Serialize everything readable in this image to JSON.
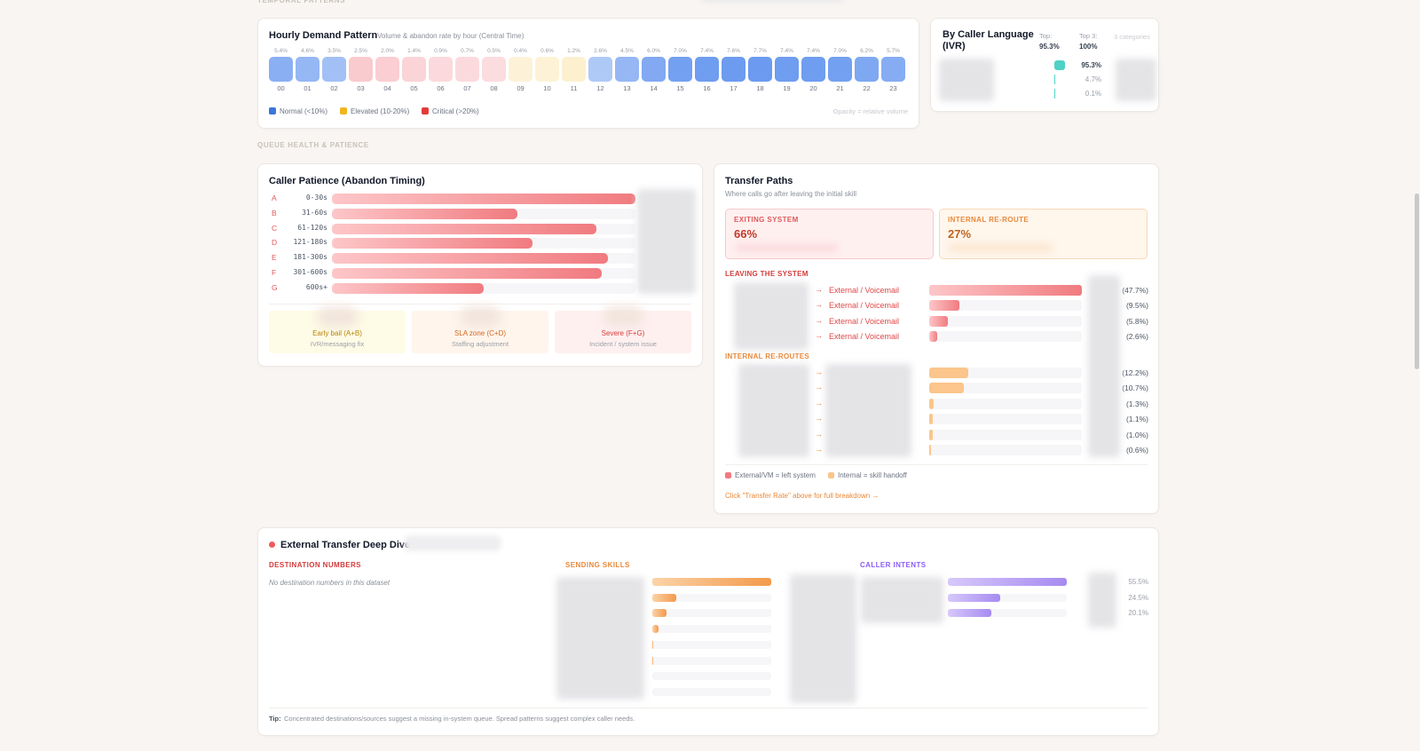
{
  "sections": {
    "temporal": "TEMPORAL PATTERNS",
    "queue": "QUEUE HEALTH & PATIENCE"
  },
  "hourly": {
    "title": "Hourly Demand Pattern",
    "subtitle": "Volume & abandon rate by hour (Central Time)",
    "hours": [
      "00",
      "01",
      "02",
      "03",
      "04",
      "05",
      "06",
      "07",
      "08",
      "09",
      "10",
      "11",
      "12",
      "13",
      "14",
      "15",
      "16",
      "17",
      "18",
      "19",
      "20",
      "21",
      "22",
      "23"
    ],
    "values": [
      5.4,
      4.6,
      3.5,
      2.5,
      2.0,
      1.4,
      0.9,
      0.7,
      0.5,
      0.4,
      0.6,
      1.2,
      2.6,
      4.5,
      6.0,
      7.0,
      7.4,
      7.6,
      7.7,
      7.4,
      7.4,
      7.0,
      6.2,
      5.7
    ],
    "value_labels": [
      "5.4%",
      "4.6%",
      "3.5%",
      "2.5%",
      "2.0%",
      "1.4%",
      "0.9%",
      "0.7%",
      "0.5%",
      "0.4%",
      "0.6%",
      "1.2%",
      "2.6%",
      "4.5%",
      "6.0%",
      "7.0%",
      "7.4%",
      "7.6%",
      "7.7%",
      "7.4%",
      "7.4%",
      "7.0%",
      "6.2%",
      "5.7%"
    ],
    "colors": [
      "#6b9af0",
      "#6b9af0",
      "#6b9af0",
      "#f49aa2",
      "#f49aa2",
      "#f49aa2",
      "#f49aa2",
      "#f49aa2",
      "#f49aa2",
      "#f8d98a",
      "#f8d98a",
      "#f8d98a",
      "#6b9af0",
      "#6b9af0",
      "#6b9af0",
      "#6b9af0",
      "#6b9af0",
      "#6b9af0",
      "#6b9af0",
      "#6b9af0",
      "#6b9af0",
      "#6b9af0",
      "#6b9af0",
      "#6b9af0"
    ],
    "legend": [
      {
        "name": "Normal (<10%)",
        "color": "#3b76d8"
      },
      {
        "name": "Elevated (10-20%)",
        "color": "#f2b51d"
      },
      {
        "name": "Critical (>20%)",
        "color": "#e23b3b"
      }
    ],
    "note": "Opacity = relative volume"
  },
  "language": {
    "title": "By Caller Language (IVR)",
    "stats": [
      {
        "label": "Top:",
        "value": "95.3%"
      },
      {
        "label": "Top 3:",
        "value": "100%"
      }
    ],
    "count_note": "3 categories",
    "values": [
      95.3,
      4.7,
      0.1
    ],
    "value_labels": [
      "95.3%",
      "4.7%",
      "0.1%"
    ],
    "color": "#4fd1c5"
  },
  "patience": {
    "title": "Caller Patience (Abandon Timing)",
    "letters": [
      "A",
      "B",
      "C",
      "D",
      "E",
      "F",
      "G"
    ],
    "ranges": [
      "0-30s",
      "31-60s",
      "61-120s",
      "121-180s",
      "181-300s",
      "301-600s",
      "600s+"
    ],
    "values": [
      100,
      61,
      87,
      66,
      91,
      89,
      50
    ],
    "zones": [
      {
        "title": "Early bail (A+B)",
        "desc": "IVR/messaging fix",
        "bg": "#fefbe6",
        "fg": "#b8860b"
      },
      {
        "title": "SLA zone (C+D)",
        "desc": "Staffing adjustment",
        "bg": "#fff5ec",
        "fg": "#d2691e"
      },
      {
        "title": "Severe (F+G)",
        "desc": "Incident / system issue",
        "bg": "#fff0f0",
        "fg": "#d43a3a"
      }
    ]
  },
  "transfers": {
    "title": "Transfer Paths",
    "subtitle": "Where calls go after leaving the initial skill",
    "summary": [
      {
        "label": "EXITING SYSTEM",
        "value": "66%",
        "bg": "#fff0f0",
        "border": "#f6c9cb",
        "fg": "#c0392b",
        "label_fg": "#e05a5a"
      },
      {
        "label": "INTERNAL RE-ROUTE",
        "value": "27%",
        "bg": "#fff6ec",
        "border": "#f8d9b8",
        "fg": "#c0641c",
        "label_fg": "#e9893a"
      }
    ],
    "external_heading": "LEAVING THE SYSTEM",
    "external": {
      "names": [
        "External / Voicemail",
        "External / Voicemail",
        "External / Voicemail",
        "External / Voicemail"
      ],
      "values": [
        47.7,
        9.5,
        5.8,
        2.6
      ],
      "value_labels": [
        "(47.7%)",
        "(9.5%)",
        "(5.8%)",
        "(2.6%)"
      ]
    },
    "internal_heading": "INTERNAL RE-ROUTES",
    "internal": {
      "values": [
        12.2,
        10.7,
        1.3,
        1.1,
        1.0,
        0.6
      ],
      "value_labels": [
        "(12.2%)",
        "(10.7%)",
        "(1.3%)",
        "(1.1%)",
        "(1.0%)",
        "(0.6%)"
      ]
    },
    "legend": [
      {
        "name": "External/VM = left system",
        "color": "#f07b80"
      },
      {
        "name": "Internal = skill handoff",
        "color": "#fbc58b"
      }
    ],
    "link": "Click \"Transfer Rate\" above for full breakdown →"
  },
  "deep_dive": {
    "title": "External Transfer Deep Dive",
    "destinations_heading": "DESTINATION NUMBERS",
    "destinations_empty": "No destination numbers in this dataset",
    "skills_heading": "SENDING SKILLS",
    "skills_values": [
      100,
      20,
      12,
      5,
      1,
      1,
      0,
      0
    ],
    "intents_heading": "CALLER INTENTS",
    "intents_values": [
      55.5,
      24.5,
      20.1
    ],
    "intents_labels": [
      "55.5%",
      "24.5%",
      "20.1%"
    ],
    "tip_label": "Tip:",
    "tip": "Concentrated destinations/sources suggest a missing in-system queue. Spread patterns suggest complex caller needs."
  }
}
